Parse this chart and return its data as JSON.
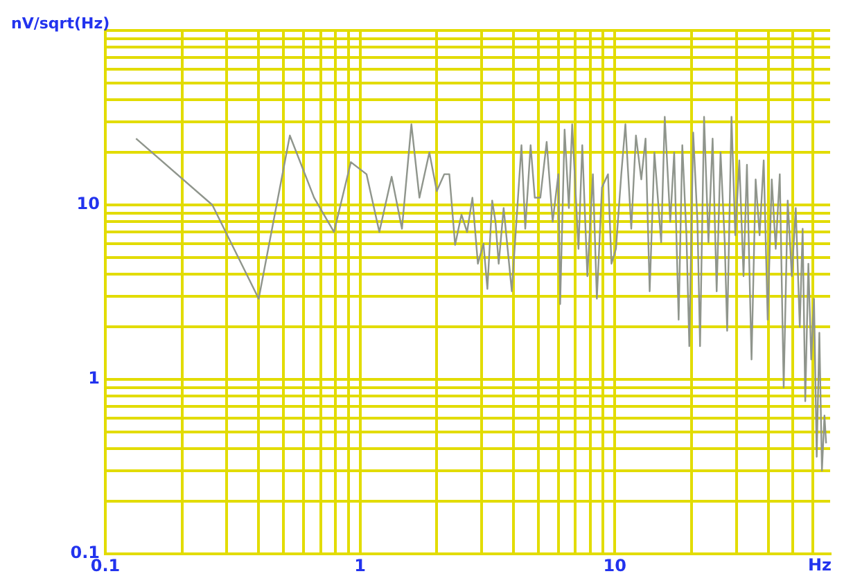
{
  "chart_data": {
    "type": "line",
    "xlabel": "Hz",
    "ylabel": "nV/sqrt(Hz)",
    "log": "xy",
    "grid": true,
    "marker": "none",
    "line_style": "solid",
    "legend": false,
    "xlim": [
      0.1,
      70
    ],
    "ylim": [
      0.1,
      100
    ],
    "xticks": [
      0.1,
      {
        "value": 0.2,
        "label": null
      },
      {
        "value": 0.3,
        "label": null
      },
      {
        "value": 0.4,
        "label": null
      },
      {
        "value": 0.5,
        "label": null
      },
      {
        "value": 0.6,
        "label": null
      },
      {
        "value": 0.7,
        "label": null
      },
      {
        "value": 0.8,
        "label": null
      },
      {
        "value": 0.9,
        "label": null
      },
      1,
      {
        "value": 2,
        "label": null
      },
      {
        "value": 3,
        "label": null
      },
      {
        "value": 4,
        "label": null
      },
      {
        "value": 5,
        "label": null
      },
      {
        "value": 6,
        "label": null
      },
      {
        "value": 7,
        "label": null
      },
      {
        "value": 8,
        "label": null
      },
      {
        "value": 9,
        "label": null
      },
      10,
      {
        "value": 20,
        "label": null
      },
      {
        "value": 30,
        "label": null
      },
      {
        "value": 40,
        "label": null
      },
      {
        "value": 50,
        "label": null
      },
      {
        "value": 60,
        "label": null
      }
    ],
    "yticks": [
      0.1,
      {
        "value": 0.2,
        "label": null
      },
      {
        "value": 0.3,
        "label": null
      },
      {
        "value": 0.4,
        "label": null
      },
      {
        "value": 0.5,
        "label": null
      },
      {
        "value": 0.6,
        "label": null
      },
      {
        "value": 0.7,
        "label": null
      },
      {
        "value": 0.8,
        "label": null
      },
      {
        "value": 0.9,
        "label": null
      },
      1,
      {
        "value": 2,
        "label": null
      },
      {
        "value": 3,
        "label": null
      },
      {
        "value": 4,
        "label": null
      },
      {
        "value": 5,
        "label": null
      },
      {
        "value": 6,
        "label": null
      },
      {
        "value": 7,
        "label": null
      },
      {
        "value": 8,
        "label": null
      },
      {
        "value": 9,
        "label": null
      },
      10,
      {
        "value": 20,
        "label": null
      },
      {
        "value": 30,
        "label": null
      },
      {
        "value": 40,
        "label": null
      },
      {
        "value": 50,
        "label": null
      },
      {
        "value": 60,
        "label": null
      },
      {
        "value": 70,
        "label": null
      },
      {
        "value": 80,
        "label": null
      },
      {
        "value": 90,
        "label": null
      },
      {
        "value": 100,
        "label": null
      }
    ],
    "series": [
      {
        "color": "#8f958c",
        "x": [
          0.132,
          0.263,
          0.4,
          0.53,
          0.66,
          0.79,
          0.92,
          1.06,
          1.19,
          1.33,
          1.46,
          1.59,
          1.71,
          1.87,
          2.0,
          2.14,
          2.24,
          2.36,
          2.5,
          2.63,
          2.76,
          2.9,
          3.05,
          3.16,
          3.3,
          3.4,
          3.5,
          3.66,
          3.94,
          4.3,
          4.45,
          4.67,
          4.85,
          5.1,
          5.4,
          5.7,
          6.0,
          6.1,
          6.35,
          6.6,
          6.8,
          7.2,
          7.45,
          7.8,
          8.2,
          8.5,
          8.9,
          9.4,
          9.7,
          10.1,
          10.6,
          11.0,
          11.6,
          12.1,
          12.7,
          13.2,
          13.7,
          14.3,
          15.2,
          15.7,
          16.5,
          17.1,
          17.8,
          18.4,
          19.1,
          19.6,
          20.3,
          21.1,
          21.6,
          22.4,
          23.3,
          24.2,
          25.1,
          26,
          27,
          27.6,
          28.7,
          29.7,
          30.8,
          32,
          33,
          34.4,
          35.7,
          37,
          38.4,
          39.8,
          41.3,
          42.8,
          44.4,
          46,
          47.7,
          49.5,
          51.3,
          53.2,
          54.6,
          55.9,
          57.5,
          59,
          60.5,
          62,
          63.5,
          65,
          66.5,
          67.5
        ],
        "values": [
          24,
          10,
          2.9,
          25,
          11,
          7,
          17.6,
          15,
          7,
          14.5,
          7.3,
          29,
          11,
          20,
          12,
          15,
          15,
          5.9,
          8.8,
          7,
          11,
          4.6,
          6,
          3.3,
          10.6,
          8,
          4.6,
          9.6,
          3.2,
          22,
          7.3,
          22,
          11,
          11,
          23,
          8,
          15,
          2.7,
          27,
          9.6,
          29,
          5.6,
          22,
          3.9,
          15,
          2.9,
          12.6,
          15,
          4.6,
          5.6,
          15,
          29,
          7.3,
          25,
          14,
          24,
          3.2,
          20,
          6.1,
          32,
          8,
          20,
          2.2,
          22,
          6.7,
          1.55,
          26,
          8,
          1.55,
          32,
          6.1,
          24,
          3.2,
          20,
          6.1,
          1.9,
          32,
          6.7,
          18,
          3.9,
          17,
          1.3,
          14,
          6.7,
          18,
          2.2,
          14,
          5.6,
          15,
          0.9,
          10.6,
          3.9,
          9.6,
          2.0,
          7.3,
          0.75,
          4.6,
          1.3,
          2.9,
          0.36,
          1.85,
          0.3,
          0.62,
          0.43
        ]
      }
    ]
  }
}
